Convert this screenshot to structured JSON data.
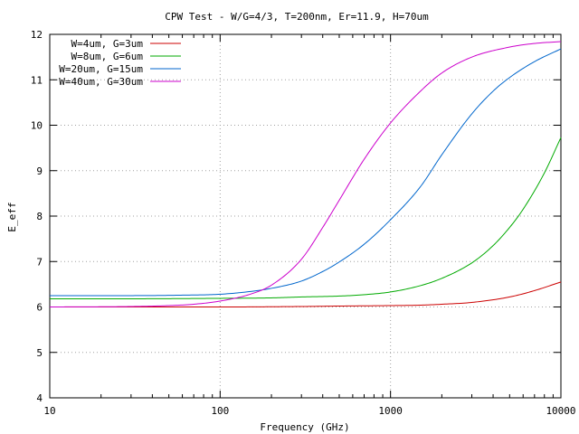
{
  "chart_data": {
    "type": "line",
    "title": "CPW Test - W/G=4/3, T=200nm, Er=11.9, H=70um",
    "xlabel": "Frequency (GHz)",
    "ylabel": "E_eff",
    "xscale": "log",
    "xlim": [
      10,
      10000
    ],
    "ylim": [
      4,
      12
    ],
    "xticks": [
      10,
      100,
      1000,
      10000
    ],
    "yticks": [
      4,
      5,
      6,
      7,
      8,
      9,
      10,
      11,
      12
    ],
    "grid": true,
    "legend_position": "top-left",
    "series": [
      {
        "name": "W=4um, G=3um",
        "color": "#cc0000",
        "x": [
          10,
          30,
          100,
          300,
          500,
          1000,
          1500,
          2000,
          3000,
          5000,
          7000,
          10000
        ],
        "y": [
          6.0,
          6.0,
          6.0,
          6.01,
          6.02,
          6.03,
          6.04,
          6.06,
          6.1,
          6.22,
          6.36,
          6.55
        ]
      },
      {
        "name": "W=8um, G=6um",
        "color": "#00aa00",
        "x": [
          10,
          30,
          100,
          200,
          300,
          500,
          700,
          1000,
          1500,
          2000,
          3000,
          4000,
          5000,
          6000,
          8000,
          10000
        ],
        "y": [
          6.18,
          6.18,
          6.19,
          6.2,
          6.22,
          6.24,
          6.27,
          6.33,
          6.47,
          6.63,
          6.97,
          7.35,
          7.75,
          8.15,
          8.95,
          9.73
        ]
      },
      {
        "name": "W=20um, G=15um",
        "color": "#0066cc",
        "x": [
          10,
          30,
          60,
          100,
          150,
          200,
          300,
          400,
          500,
          700,
          1000,
          1500,
          2000,
          3000,
          4000,
          5000,
          7000,
          10000
        ],
        "y": [
          6.25,
          6.25,
          6.26,
          6.28,
          6.34,
          6.41,
          6.57,
          6.78,
          6.99,
          7.38,
          7.92,
          8.65,
          9.35,
          10.25,
          10.75,
          11.05,
          11.4,
          11.68
        ]
      },
      {
        "name": "W=40um, G=30um",
        "color": "#cc00cc",
        "x": [
          10,
          30,
          50,
          70,
          100,
          150,
          200,
          300,
          400,
          500,
          700,
          1000,
          1500,
          2000,
          3000,
          5000,
          7000,
          10000
        ],
        "y": [
          6.0,
          6.01,
          6.03,
          6.06,
          6.13,
          6.28,
          6.48,
          7.05,
          7.75,
          8.35,
          9.25,
          10.05,
          10.75,
          11.15,
          11.5,
          11.72,
          11.8,
          11.84
        ]
      }
    ]
  }
}
